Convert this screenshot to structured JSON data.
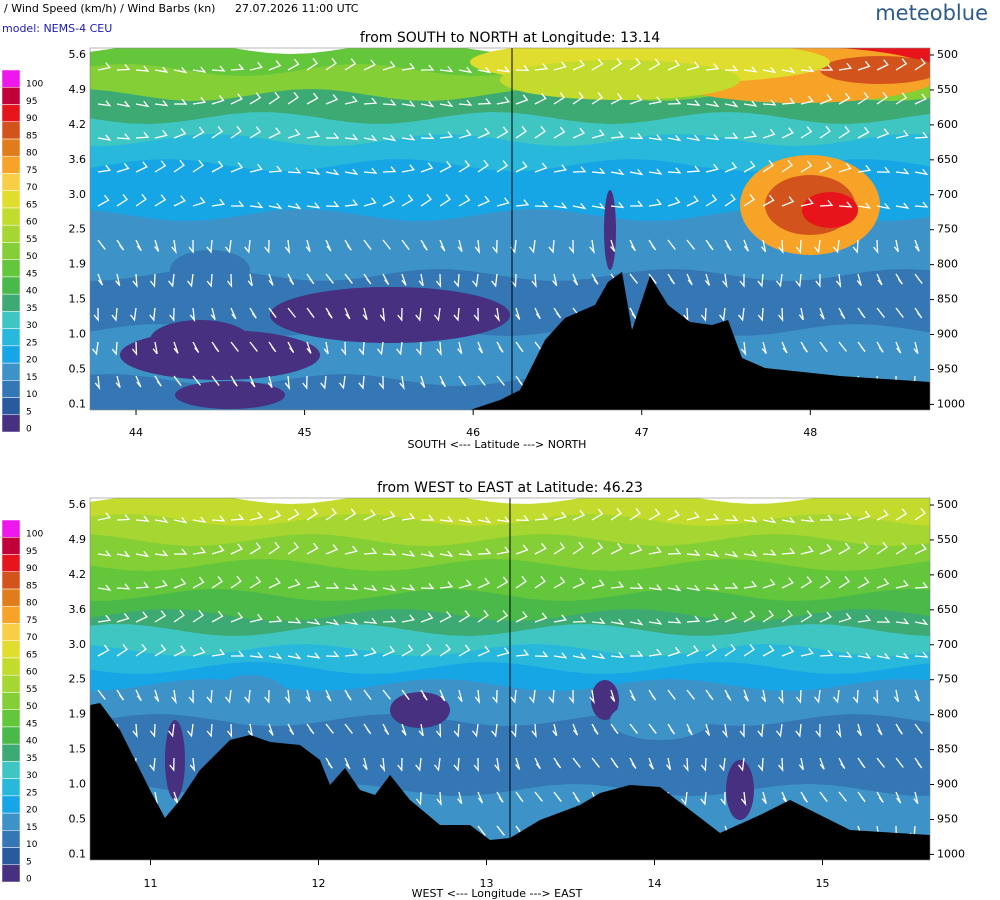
{
  "header": {
    "title": "/ Wind Speed (km/h) / Wind Barbs (kn)",
    "time": "27.07.2026  11:00 UTC",
    "model": "model: NEMS-4 CEU",
    "brand": "meteoblue"
  },
  "legend": {
    "levels": [
      0,
      5,
      10,
      15,
      20,
      25,
      30,
      35,
      40,
      45,
      50,
      55,
      60,
      65,
      70,
      75,
      80,
      85,
      90,
      95,
      100
    ],
    "colors": [
      "#46307f",
      "#2a5a9e",
      "#3477b4",
      "#3d93c8",
      "#16a6e6",
      "#28b8dc",
      "#40c6c2",
      "#3caa72",
      "#4ab94a",
      "#64c63a",
      "#84cf36",
      "#a6d631",
      "#c2db2c",
      "#e0dd2e",
      "#f8cf44",
      "#f7a328",
      "#e07d1a",
      "#d2541c",
      "#e8141b",
      "#c2003a",
      "#ee18ee"
    ]
  },
  "panels": [
    {
      "title": "from SOUTH to NORTH at Longitude:  13.14",
      "xlabel": "SOUTH <---   Latitude   ---> NORTH",
      "xlim": [
        43.727,
        48.71
      ],
      "xticks": [
        44,
        45,
        46,
        47,
        48
      ],
      "ylim": [
        490,
        1008
      ],
      "yticks": [
        500,
        550,
        600,
        650,
        700,
        750,
        800,
        850,
        900,
        950,
        1000
      ],
      "height_ticks": [
        5.6,
        4.9,
        4.2,
        3.6,
        {
          "value": 3,
          "label": "3.0"
        },
        2.5,
        1.9,
        1.5,
        {
          "value": 1,
          "label": "1.0"
        },
        0.5,
        0.1
      ]
    },
    {
      "title": "from WEST to EAST at Latitude:  46.23",
      "xlabel": "WEST <---   Longitude   ---> EAST",
      "xlim": [
        10.64,
        15.64
      ],
      "xticks": [
        11,
        12,
        13,
        14,
        15
      ],
      "ylim": [
        490,
        1008
      ],
      "yticks": [
        500,
        550,
        600,
        650,
        700,
        750,
        800,
        850,
        900,
        950,
        1000
      ],
      "height_ticks": [
        5.6,
        4.9,
        4.2,
        3.6,
        {
          "value": 3,
          "label": "3.0"
        },
        2.5,
        1.9,
        1.5,
        {
          "value": 1,
          "label": "1.0"
        },
        0.5,
        0.1
      ]
    }
  ]
}
